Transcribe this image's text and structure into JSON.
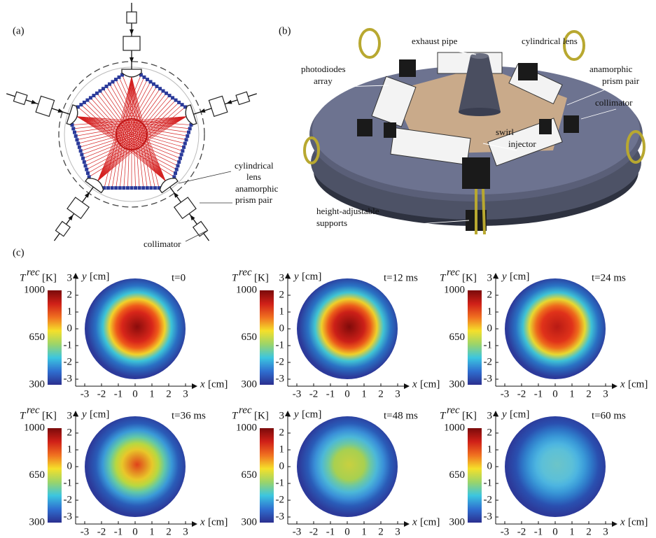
{
  "panel_labels": [
    "(a)",
    "(b)",
    "(c)"
  ],
  "panel_a": {
    "cylindrical_lens": [
      "cylindrical",
      "lens"
    ],
    "prism_pair": [
      "anamorphic",
      "prism pair"
    ],
    "collimator": "collimator"
  },
  "panel_b": {
    "labels": [
      [
        "exhaust pipe"
      ],
      [
        "cylindrical lens"
      ],
      [
        "photodiodes",
        "array"
      ],
      [
        "anamorphic",
        "prism pair"
      ],
      [
        "collimator"
      ],
      [
        "swirl",
        "injector"
      ],
      [
        "height-adjustable",
        "supports"
      ]
    ]
  },
  "panel_c": {
    "colorbar": {
      "symbol": "T",
      "superscript": "rec",
      "unit": "[K]",
      "range": [
        300,
        1000
      ],
      "ticks": [
        300,
        650,
        1000
      ],
      "colormap": [
        "#2b2f8f",
        "#2f6fd0",
        "#3cc6e0",
        "#9bd46a",
        "#f5e02a",
        "#f07020",
        "#d02018",
        "#7a0a0a"
      ]
    },
    "axes": {
      "x_var": "x",
      "y_var": "y",
      "unit": "[cm]",
      "lim": [
        -3,
        3
      ],
      "ticks": [
        -3,
        -2,
        -1,
        0,
        1,
        2,
        3
      ]
    },
    "maps": [
      {
        "time": "t=0",
        "colors": [
          "#8a0c0c",
          "#d8261a",
          "#ef5a1a",
          "#f2d22a",
          "#3cc4d8",
          "#2a70c4",
          "#2c3a9a"
        ]
      },
      {
        "time": "t=12 ms",
        "colors": [
          "#800a0a",
          "#cc2018",
          "#ec5a1a",
          "#efd02a",
          "#40c4d4",
          "#2a72c4",
          "#2c3a9a"
        ]
      },
      {
        "time": "t=24 ms",
        "colors": [
          "#b81a14",
          "#e0321a",
          "#ee6a1c",
          "#e8d830",
          "#3ec2d6",
          "#2a72c4",
          "#2c3a9a"
        ]
      },
      {
        "time": "t=36 ms",
        "colors": [
          "#e0421a",
          "#e8c82a",
          "#b8d840",
          "#62c8a8",
          "#3a9ad8",
          "#2a5cb8",
          "#2c3a9a"
        ]
      },
      {
        "time": "t=48 ms",
        "colors": [
          "#c8d040",
          "#a8d050",
          "#6ec8a0",
          "#4cb8d8",
          "#3a90d8",
          "#2a5cb8",
          "#2c3a9a"
        ]
      },
      {
        "time": "t=60 ms",
        "colors": [
          "#6cc4c8",
          "#5cc0d8",
          "#4cb4e0",
          "#3a9ad8",
          "#2e78c8",
          "#2a50b0",
          "#2c3a9a"
        ]
      }
    ]
  }
}
